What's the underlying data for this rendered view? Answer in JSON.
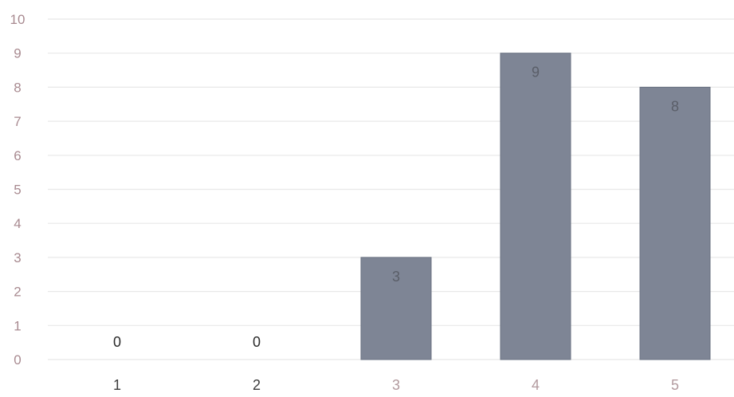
{
  "chart_data": {
    "type": "bar",
    "categories": [
      "1",
      "2",
      "3",
      "4",
      "5"
    ],
    "values": [
      0,
      0,
      3,
      9,
      8
    ],
    "title": "",
    "xlabel": "",
    "ylabel": "",
    "ylim": [
      0,
      10
    ],
    "yticks": [
      "0",
      "1",
      "2",
      "3",
      "4",
      "5",
      "6",
      "7",
      "8",
      "9",
      "10"
    ],
    "grid": true,
    "legend": "none",
    "data_labels": [
      "0",
      "0",
      "3",
      "9",
      "8"
    ]
  },
  "colors": {
    "bar": "#7e8595",
    "bar_edge": "#6b7282",
    "grid": "#e8e8e8",
    "ytick_text": "#a88a90",
    "xtick_text_dark": "#3a3a3a",
    "xtick_text_light": "#b29a9e",
    "label_on_bar": "#5a5e68",
    "label_zero": "#2a2a2a"
  }
}
